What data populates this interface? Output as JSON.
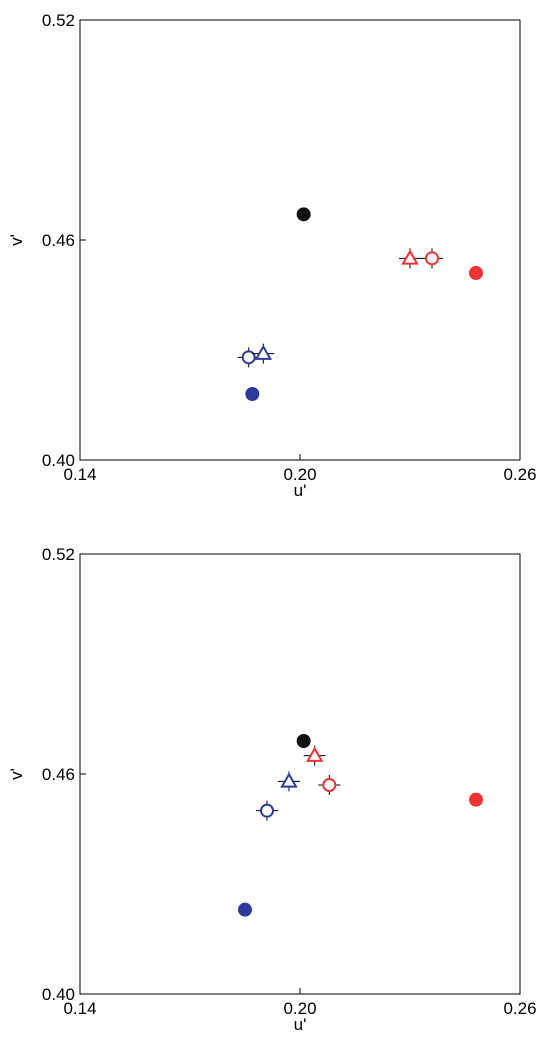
{
  "colors": {
    "black": "#111111",
    "red": "#ee3333",
    "blue": "#2e3a99"
  },
  "chart_data": [
    {
      "type": "scatter",
      "title": "",
      "xlabel": "u'",
      "ylabel": "v'",
      "xlim": [
        0.14,
        0.26
      ],
      "ylim": [
        0.4,
        0.52
      ],
      "xticks": [
        "0.14",
        "0.20",
        "0.26"
      ],
      "yticks": [
        "0.40",
        "0.46",
        "0.52"
      ],
      "grid": false,
      "points": [
        {
          "x": 0.201,
          "y": 0.467,
          "marker": "filled-circle",
          "color": "black"
        },
        {
          "x": 0.23,
          "y": 0.455,
          "marker": "open-triangle",
          "color": "red",
          "error": true
        },
        {
          "x": 0.236,
          "y": 0.455,
          "marker": "open-circle",
          "color": "red",
          "error": true
        },
        {
          "x": 0.248,
          "y": 0.451,
          "marker": "filled-circle",
          "color": "red"
        },
        {
          "x": 0.186,
          "y": 0.428,
          "marker": "open-circle",
          "color": "blue",
          "error": true
        },
        {
          "x": 0.19,
          "y": 0.429,
          "marker": "open-triangle",
          "color": "blue",
          "error": true
        },
        {
          "x": 0.187,
          "y": 0.418,
          "marker": "filled-circle",
          "color": "blue"
        }
      ]
    },
    {
      "type": "scatter",
      "title": "",
      "xlabel": "u'",
      "ylabel": "v'",
      "xlim": [
        0.14,
        0.26
      ],
      "ylim": [
        0.4,
        0.52
      ],
      "xticks": [
        "0.14",
        "0.20",
        "0.26"
      ],
      "yticks": [
        "0.40",
        "0.46",
        "0.52"
      ],
      "grid": false,
      "points": [
        {
          "x": 0.201,
          "y": 0.469,
          "marker": "filled-circle",
          "color": "black"
        },
        {
          "x": 0.204,
          "y": 0.465,
          "marker": "open-triangle",
          "color": "red",
          "error": true
        },
        {
          "x": 0.208,
          "y": 0.457,
          "marker": "open-circle",
          "color": "red",
          "error": true
        },
        {
          "x": 0.248,
          "y": 0.453,
          "marker": "filled-circle",
          "color": "red"
        },
        {
          "x": 0.197,
          "y": 0.458,
          "marker": "open-triangle",
          "color": "blue",
          "error": true
        },
        {
          "x": 0.191,
          "y": 0.45,
          "marker": "open-circle",
          "color": "blue",
          "error": true
        },
        {
          "x": 0.185,
          "y": 0.423,
          "marker": "filled-circle",
          "color": "blue"
        }
      ]
    }
  ]
}
